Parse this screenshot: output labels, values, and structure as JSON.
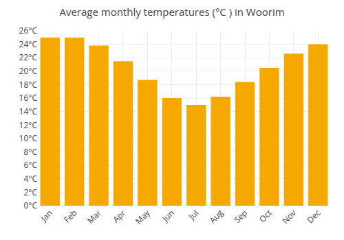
{
  "chart_data": {
    "type": "bar",
    "title": "Average monthly temperatures (°C ) in Woorim",
    "categories": [
      "Jan",
      "Feb",
      "Mar",
      "Apr",
      "May",
      "Jun",
      "Jul",
      "Aug",
      "Sep",
      "Oct",
      "Nov",
      "Dec"
    ],
    "values": [
      25.0,
      25.0,
      23.8,
      21.5,
      18.7,
      16.0,
      15.0,
      16.2,
      18.4,
      20.5,
      22.6,
      24.0
    ],
    "color": "#F5A800",
    "ylim": [
      0,
      26
    ],
    "yticks": [
      {
        "value": 0,
        "label": "0°C"
      },
      {
        "value": 2,
        "label": "2°C"
      },
      {
        "value": 4,
        "label": "4°C"
      },
      {
        "value": 6,
        "label": "6°C"
      },
      {
        "value": 8,
        "label": "8°C"
      },
      {
        "value": 10,
        "label": "10°C"
      },
      {
        "value": 12,
        "label": "12°C"
      },
      {
        "value": 14,
        "label": "14°C"
      },
      {
        "value": 16,
        "label": "16°C"
      },
      {
        "value": 18,
        "label": "18°C"
      },
      {
        "value": 20,
        "label": "20°C"
      },
      {
        "value": 22,
        "label": "22°C"
      },
      {
        "value": 24,
        "label": "24°C"
      },
      {
        "value": 26,
        "label": "26°C"
      }
    ],
    "grid": true
  }
}
